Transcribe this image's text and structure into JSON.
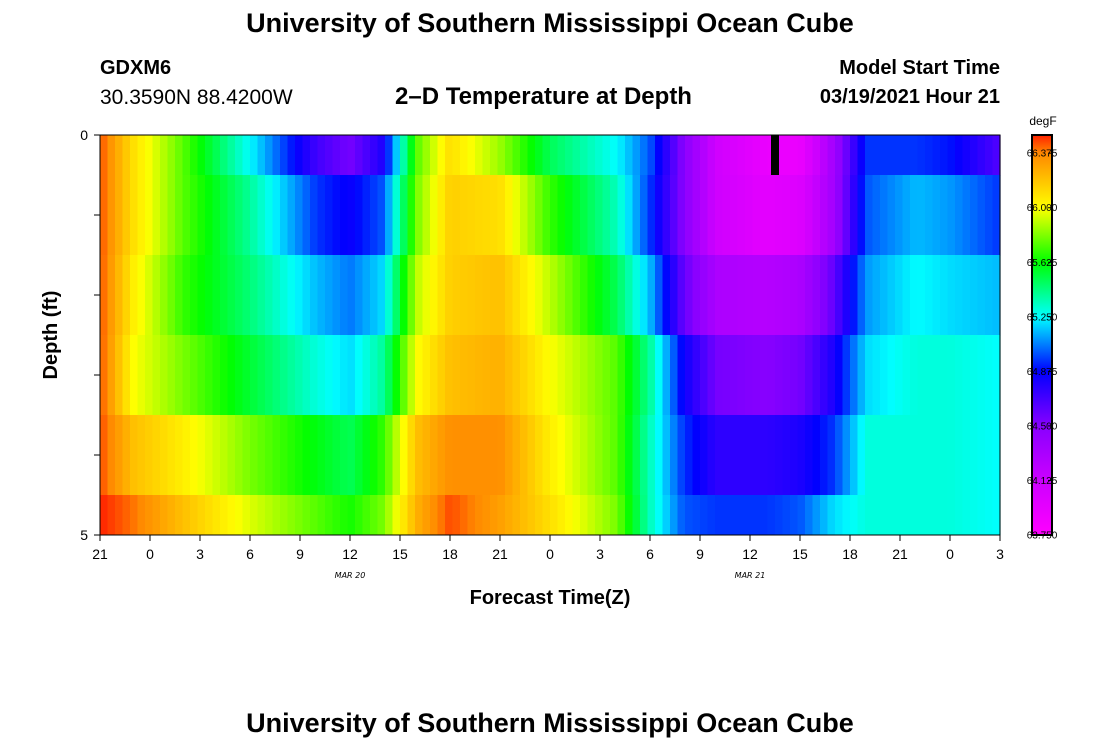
{
  "header": {
    "title": "University of Southern Mississippi Ocean Cube",
    "station_id": "GDXM6",
    "station_coords": "30.3590N 88.4200W",
    "subtitle": "2–D Temperature at Depth",
    "model_start_label": "Model Start Time",
    "model_start_value": "03/19/2021 Hour 21"
  },
  "footer": {
    "title": "University of Southern Mississippi Ocean Cube"
  },
  "chart_data": {
    "type": "heatmap",
    "title": "2–D Temperature at Depth",
    "xlabel": "Forecast Time(Z)",
    "ylabel": "Depth (ft)",
    "x_unit": "hours since 03/19/2021 21Z",
    "xlim": [
      0,
      54
    ],
    "ylim": [
      0,
      5
    ],
    "x_tick_labels": [
      "21",
      "0",
      "3",
      "6",
      "9",
      "12",
      "15",
      "18",
      "21",
      "0",
      "3",
      "6",
      "9",
      "12",
      "15",
      "18",
      "21",
      "0",
      "3"
    ],
    "date_labels": [
      {
        "text": "MAR 20",
        "x_hour": 15
      },
      {
        "text": "MAR 21",
        "x_hour": 39
      }
    ],
    "y_tick_labels": [
      {
        "depth": 0,
        "label": "0"
      },
      {
        "depth": 5,
        "label": "5"
      }
    ],
    "y_minor_ticks": [
      1,
      2,
      3,
      4
    ],
    "depth_bands": [
      0,
      0.5,
      1.5,
      2.5,
      3.5,
      4.5,
      5.0
    ],
    "profile": {
      "knots": [
        0,
        2,
        5,
        9,
        13,
        15,
        17,
        19,
        21,
        24,
        27,
        31,
        33,
        35,
        37,
        40,
        42,
        44,
        46,
        49,
        51,
        54
      ],
      "values": [
        [
          66.45,
          66.1,
          65.75,
          65.25,
          64.7,
          64.55,
          64.8,
          65.75,
          66.1,
          65.85,
          65.5,
          65.25,
          65.0,
          64.5,
          64.1,
          63.9,
          63.9,
          64.35,
          64.95,
          64.95,
          64.9,
          64.65
        ],
        [
          66.45,
          66.1,
          65.75,
          65.4,
          64.95,
          64.85,
          65.0,
          65.8,
          66.15,
          66.1,
          65.7,
          65.35,
          64.95,
          64.5,
          64.1,
          63.95,
          64.0,
          64.35,
          65.0,
          65.15,
          65.1,
          64.95
        ],
        [
          66.45,
          66.05,
          65.7,
          65.45,
          65.15,
          65.05,
          65.2,
          65.9,
          66.15,
          66.2,
          65.9,
          65.5,
          65.15,
          64.6,
          64.3,
          64.25,
          64.3,
          64.6,
          65.1,
          65.25,
          65.2,
          65.15
        ],
        [
          66.45,
          66.0,
          65.8,
          65.55,
          65.3,
          65.2,
          65.4,
          66.0,
          66.2,
          66.25,
          66.0,
          65.75,
          65.4,
          64.85,
          64.55,
          64.5,
          64.55,
          64.8,
          65.2,
          65.3,
          65.3,
          65.25
        ],
        [
          66.45,
          66.2,
          66.05,
          65.8,
          65.6,
          65.5,
          65.7,
          66.2,
          66.35,
          66.35,
          66.05,
          65.75,
          65.35,
          64.95,
          64.75,
          64.75,
          64.8,
          64.95,
          65.3,
          65.3,
          65.3,
          65.25
        ],
        [
          66.5,
          66.4,
          66.2,
          65.95,
          65.75,
          65.65,
          65.8,
          66.25,
          66.45,
          66.3,
          66.1,
          65.8,
          65.35,
          65.0,
          64.95,
          64.95,
          65.0,
          65.2,
          65.3,
          65.3,
          65.3,
          65.25
        ]
      ]
    },
    "color_scale": {
      "unit": "degF",
      "min": 63.75,
      "max": 66.5,
      "tick_labels": [
        "66.375",
        "66.000",
        "65.625",
        "65.250",
        "64.875",
        "64.500",
        "64.125",
        "63.750"
      ],
      "stops": [
        {
          "v": 63.75,
          "c": "#ff00ff"
        },
        {
          "v": 64.125,
          "c": "#cc00ff"
        },
        {
          "v": 64.5,
          "c": "#8800ff"
        },
        {
          "v": 64.875,
          "c": "#0000ff"
        },
        {
          "v": 65.25,
          "c": "#00ffff"
        },
        {
          "v": 65.625,
          "c": "#00ff00"
        },
        {
          "v": 66.0,
          "c": "#ffff00"
        },
        {
          "v": 66.375,
          "c": "#ff8800"
        },
        {
          "v": 66.5,
          "c": "#ff2200"
        }
      ]
    },
    "markers": [
      {
        "type": "current-time",
        "x_hour": 40.5,
        "depth_from": 0,
        "depth_to": 0.5,
        "color": "#000000"
      }
    ]
  }
}
